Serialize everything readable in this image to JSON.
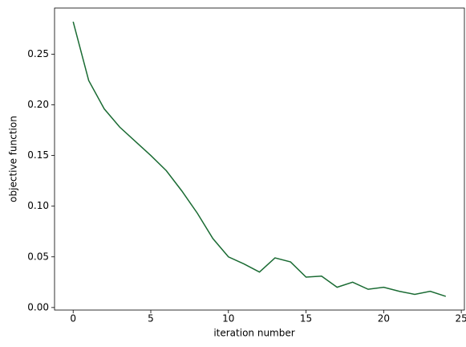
{
  "chart_data": {
    "type": "line",
    "x_label": "iteration number",
    "y_label": "objective function",
    "x": [
      0,
      1,
      2,
      3,
      4,
      5,
      6,
      7,
      8,
      9,
      10,
      11,
      12,
      13,
      14,
      15,
      16,
      17,
      18,
      19,
      20,
      21,
      22,
      23,
      24
    ],
    "series": [
      {
        "color": "#1a6b33",
        "values": [
          0.282,
          0.224,
          0.196,
          0.178,
          0.164,
          0.15,
          0.135,
          0.115,
          0.093,
          0.068,
          0.05,
          0.043,
          0.035,
          0.049,
          0.045,
          0.03,
          0.031,
          0.02,
          0.025,
          0.018,
          0.02,
          0.016,
          0.013,
          0.016,
          0.011
        ]
      }
    ],
    "xlim": [
      -1.2,
      25.2
    ],
    "xticks": [
      0,
      5,
      10,
      15,
      20,
      25
    ],
    "ylim": [
      -0.0025,
      0.2955
    ],
    "yticks": [
      {
        "value": 0,
        "label": "0.00"
      },
      {
        "value": 0.05,
        "label": "0.05"
      },
      {
        "value": 0.1,
        "label": "0.10"
      },
      {
        "value": 0.15,
        "label": "0.15"
      },
      {
        "value": 0.2,
        "label": "0.20"
      },
      {
        "value": 0.25,
        "label": "0.25"
      }
    ],
    "grid": false
  }
}
